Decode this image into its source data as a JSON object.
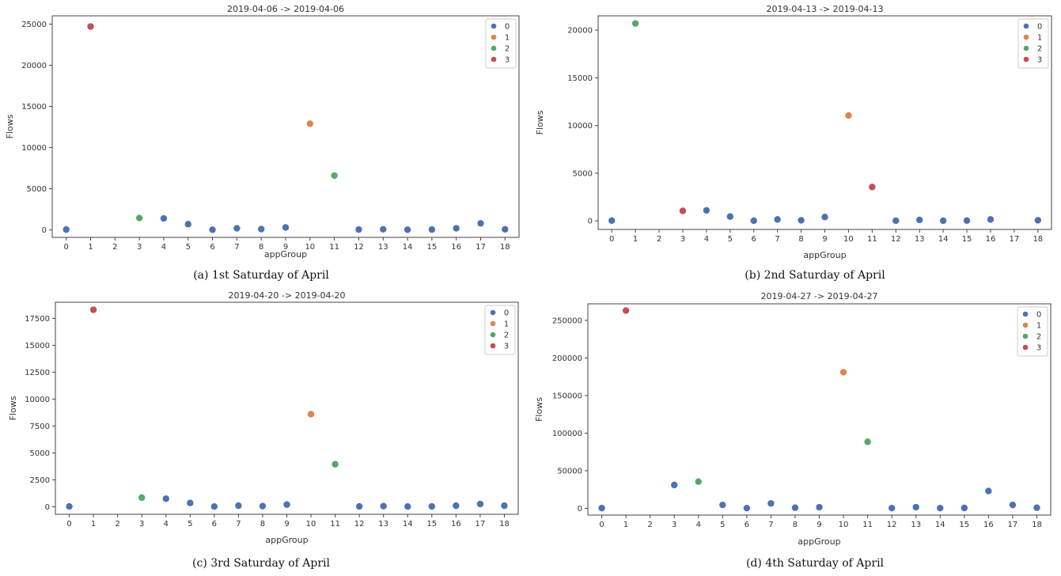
{
  "colors": {
    "0": "#4c72b0",
    "1": "#dd8452",
    "2": "#55a868",
    "3": "#c44e52"
  },
  "chart_data": [
    {
      "type": "scatter",
      "title": "2019-04-06 -> 2019-04-06",
      "caption": "(a) 1st Saturday of April",
      "xlabel": "appGroup",
      "ylabel": "Flows",
      "ylim": [
        -900,
        26000
      ],
      "yticks": [
        0,
        5000,
        10000,
        15000,
        20000,
        25000
      ],
      "categories": [
        "0",
        "1",
        "2",
        "3",
        "4",
        "5",
        "6",
        "7",
        "8",
        "9",
        "10",
        "11",
        "12",
        "13",
        "14",
        "15",
        "16",
        "17",
        "18"
      ],
      "legend": {
        "title": "",
        "labels": [
          "0",
          "1",
          "2",
          "3"
        ],
        "position": "top-right"
      },
      "points": [
        {
          "x": "0",
          "y": 50,
          "cluster": "0"
        },
        {
          "x": "1",
          "y": 24700,
          "cluster": "3"
        },
        {
          "x": "3",
          "y": 1450,
          "cluster": "2"
        },
        {
          "x": "4",
          "y": 1400,
          "cluster": "0"
        },
        {
          "x": "5",
          "y": 700,
          "cluster": "0"
        },
        {
          "x": "6",
          "y": 30,
          "cluster": "0"
        },
        {
          "x": "7",
          "y": 200,
          "cluster": "0"
        },
        {
          "x": "8",
          "y": 100,
          "cluster": "0"
        },
        {
          "x": "9",
          "y": 300,
          "cluster": "0"
        },
        {
          "x": "10",
          "y": 12900,
          "cluster": "1"
        },
        {
          "x": "11",
          "y": 6600,
          "cluster": "2"
        },
        {
          "x": "12",
          "y": 50,
          "cluster": "0"
        },
        {
          "x": "13",
          "y": 80,
          "cluster": "0"
        },
        {
          "x": "14",
          "y": 30,
          "cluster": "0"
        },
        {
          "x": "15",
          "y": 50,
          "cluster": "0"
        },
        {
          "x": "16",
          "y": 200,
          "cluster": "0"
        },
        {
          "x": "17",
          "y": 800,
          "cluster": "0"
        },
        {
          "x": "18",
          "y": 80,
          "cluster": "0"
        }
      ]
    },
    {
      "type": "scatter",
      "title": "2019-04-13 -> 2019-04-13",
      "caption": "(b) 2nd Saturday of April",
      "xlabel": "appGroup",
      "ylabel": "Flows",
      "ylim": [
        -900,
        21500
      ],
      "yticks": [
        0,
        5000,
        10000,
        15000,
        20000
      ],
      "categories": [
        "0",
        "1",
        "2",
        "3",
        "4",
        "5",
        "6",
        "7",
        "8",
        "9",
        "10",
        "11",
        "12",
        "13",
        "14",
        "15",
        "16",
        "17",
        "18"
      ],
      "legend": {
        "title": "",
        "labels": [
          "0",
          "1",
          "2",
          "3"
        ],
        "position": "top-right"
      },
      "points": [
        {
          "x": "0",
          "y": 30,
          "cluster": "0"
        },
        {
          "x": "1",
          "y": 20700,
          "cluster": "2"
        },
        {
          "x": "3",
          "y": 1050,
          "cluster": "3"
        },
        {
          "x": "4",
          "y": 1100,
          "cluster": "0"
        },
        {
          "x": "5",
          "y": 450,
          "cluster": "0"
        },
        {
          "x": "6",
          "y": 20,
          "cluster": "0"
        },
        {
          "x": "7",
          "y": 150,
          "cluster": "0"
        },
        {
          "x": "8",
          "y": 60,
          "cluster": "0"
        },
        {
          "x": "9",
          "y": 400,
          "cluster": "0"
        },
        {
          "x": "10",
          "y": 11050,
          "cluster": "1"
        },
        {
          "x": "11",
          "y": 3550,
          "cluster": "3"
        },
        {
          "x": "12",
          "y": 20,
          "cluster": "0"
        },
        {
          "x": "13",
          "y": 100,
          "cluster": "0"
        },
        {
          "x": "14",
          "y": 20,
          "cluster": "0"
        },
        {
          "x": "15",
          "y": 30,
          "cluster": "0"
        },
        {
          "x": "16",
          "y": 150,
          "cluster": "0"
        },
        {
          "x": "18",
          "y": 60,
          "cluster": "0"
        }
      ]
    },
    {
      "type": "scatter",
      "title": "2019-04-20 -> 2019-04-20",
      "caption": "(c) 3rd Saturday of April",
      "xlabel": "appGroup",
      "ylabel": "Flows",
      "ylim": [
        -700,
        19000
      ],
      "yticks": [
        0,
        2500,
        5000,
        7500,
        10000,
        12500,
        15000,
        17500
      ],
      "categories": [
        "0",
        "1",
        "2",
        "3",
        "4",
        "5",
        "6",
        "7",
        "8",
        "9",
        "10",
        "11",
        "12",
        "13",
        "14",
        "15",
        "16",
        "17",
        "18"
      ],
      "legend": {
        "title": "",
        "labels": [
          "0",
          "1",
          "2",
          "3"
        ],
        "position": "top-right"
      },
      "points": [
        {
          "x": "0",
          "y": 30,
          "cluster": "0"
        },
        {
          "x": "1",
          "y": 18300,
          "cluster": "3"
        },
        {
          "x": "3",
          "y": 850,
          "cluster": "2"
        },
        {
          "x": "4",
          "y": 750,
          "cluster": "0"
        },
        {
          "x": "5",
          "y": 350,
          "cluster": "0"
        },
        {
          "x": "6",
          "y": 20,
          "cluster": "0"
        },
        {
          "x": "7",
          "y": 100,
          "cluster": "0"
        },
        {
          "x": "8",
          "y": 60,
          "cluster": "0"
        },
        {
          "x": "9",
          "y": 200,
          "cluster": "0"
        },
        {
          "x": "10",
          "y": 8600,
          "cluster": "1"
        },
        {
          "x": "11",
          "y": 3950,
          "cluster": "2"
        },
        {
          "x": "12",
          "y": 30,
          "cluster": "0"
        },
        {
          "x": "13",
          "y": 60,
          "cluster": "0"
        },
        {
          "x": "14",
          "y": 20,
          "cluster": "0"
        },
        {
          "x": "15",
          "y": 30,
          "cluster": "0"
        },
        {
          "x": "16",
          "y": 100,
          "cluster": "0"
        },
        {
          "x": "17",
          "y": 250,
          "cluster": "0"
        },
        {
          "x": "18",
          "y": 100,
          "cluster": "0"
        }
      ]
    },
    {
      "type": "scatter",
      "title": "2019-04-27 -> 2019-04-27",
      "caption": "(d) 4th Saturday of April",
      "xlabel": "appGroup",
      "ylabel": "Flows",
      "ylim": [
        -9000,
        272000
      ],
      "yticks": [
        0,
        50000,
        100000,
        150000,
        200000,
        250000
      ],
      "categories": [
        "0",
        "1",
        "2",
        "3",
        "4",
        "5",
        "6",
        "7",
        "8",
        "9",
        "10",
        "11",
        "12",
        "13",
        "14",
        "15",
        "16",
        "17",
        "18"
      ],
      "legend": {
        "title": "",
        "labels": [
          "0",
          "1",
          "2",
          "3"
        ],
        "position": "top-right"
      },
      "points": [
        {
          "x": "0",
          "y": 300,
          "cluster": "0"
        },
        {
          "x": "1",
          "y": 263000,
          "cluster": "3"
        },
        {
          "x": "3",
          "y": 31000,
          "cluster": "0"
        },
        {
          "x": "4",
          "y": 35500,
          "cluster": "2"
        },
        {
          "x": "5",
          "y": 4500,
          "cluster": "0"
        },
        {
          "x": "6",
          "y": 300,
          "cluster": "0"
        },
        {
          "x": "7",
          "y": 6500,
          "cluster": "0"
        },
        {
          "x": "8",
          "y": 800,
          "cluster": "0"
        },
        {
          "x": "9",
          "y": 1500,
          "cluster": "0"
        },
        {
          "x": "10",
          "y": 181000,
          "cluster": "1"
        },
        {
          "x": "11",
          "y": 88500,
          "cluster": "2"
        },
        {
          "x": "12",
          "y": 300,
          "cluster": "0"
        },
        {
          "x": "13",
          "y": 1500,
          "cluster": "0"
        },
        {
          "x": "14",
          "y": 300,
          "cluster": "0"
        },
        {
          "x": "15",
          "y": 500,
          "cluster": "0"
        },
        {
          "x": "16",
          "y": 23000,
          "cluster": "0"
        },
        {
          "x": "17",
          "y": 4500,
          "cluster": "0"
        },
        {
          "x": "18",
          "y": 800,
          "cluster": "0"
        }
      ]
    }
  ]
}
